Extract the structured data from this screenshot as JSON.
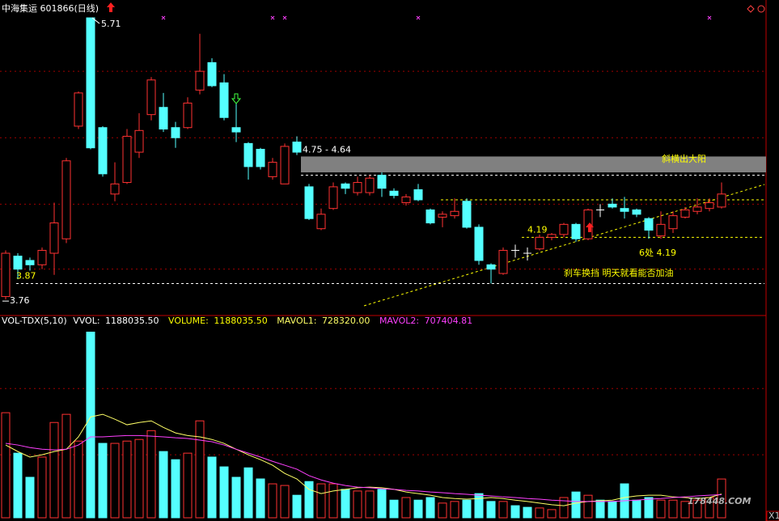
{
  "chart_data": [
    {
      "type": "candlestick",
      "title": "中海集运 601866(日线)",
      "open": [
        3.78,
        4.06,
        4.03,
        4.0,
        4.08,
        4.18,
        4.96,
        5.71,
        4.95,
        4.49,
        4.57,
        4.78,
        5.04,
        5.09,
        4.95,
        4.95,
        5.21,
        5.4,
        5.26,
        4.95,
        4.84,
        4.8,
        4.61,
        4.56,
        4.85,
        4.54,
        4.25,
        4.39,
        4.56,
        4.5,
        4.5,
        4.62,
        4.51,
        4.43,
        4.52,
        4.38,
        4.33,
        4.34,
        4.44,
        4.26,
        4.0,
        3.94,
        4.1,
        4.08,
        4.11,
        4.19,
        4.21,
        4.28,
        4.18,
        4.38,
        4.42,
        4.39,
        4.38,
        4.32,
        4.2,
        4.25,
        4.33,
        4.37,
        4.39,
        4.4
      ],
      "high": [
        4.1,
        4.08,
        4.05,
        4.12,
        4.43,
        4.74,
        5.2,
        5.71,
        4.96,
        4.71,
        4.94,
        5.05,
        5.3,
        5.19,
        4.99,
        5.16,
        5.6,
        5.43,
        5.32,
        5.12,
        4.85,
        4.81,
        4.74,
        4.84,
        4.89,
        4.56,
        4.39,
        4.57,
        4.57,
        4.61,
        4.62,
        4.64,
        4.53,
        4.49,
        4.56,
        4.39,
        4.37,
        4.46,
        4.46,
        4.28,
        4.01,
        4.12,
        4.14,
        4.12,
        4.21,
        4.22,
        4.29,
        4.29,
        4.39,
        4.42,
        4.46,
        4.47,
        4.39,
        4.33,
        4.37,
        4.37,
        4.4,
        4.46,
        4.46,
        4.57
      ],
      "low": [
        3.76,
        3.9,
        3.96,
        3.97,
        3.93,
        4.15,
        4.94,
        4.8,
        4.61,
        4.44,
        4.56,
        4.74,
        5.0,
        4.92,
        4.81,
        4.94,
        5.18,
        5.23,
        5.0,
        4.85,
        4.59,
        4.66,
        4.59,
        4.56,
        4.76,
        4.31,
        4.24,
        4.38,
        4.49,
        4.48,
        4.48,
        4.47,
        4.46,
        4.41,
        4.44,
        4.28,
        4.26,
        4.32,
        4.25,
        4.0,
        3.87,
        3.93,
        4.05,
        4.03,
        4.1,
        4.17,
        4.19,
        4.16,
        4.17,
        4.33,
        4.39,
        4.32,
        4.33,
        4.18,
        4.18,
        4.22,
        4.32,
        4.35,
        4.37,
        4.39
      ],
      "close": [
        4.08,
        3.97,
        4.0,
        4.1,
        4.29,
        4.72,
        5.19,
        4.81,
        4.63,
        4.56,
        4.89,
        4.93,
        5.28,
        4.94,
        4.88,
        5.12,
        5.34,
        5.24,
        5.02,
        4.92,
        4.68,
        4.68,
        4.71,
        4.82,
        4.78,
        4.32,
        4.35,
        4.54,
        4.53,
        4.57,
        4.6,
        4.53,
        4.48,
        4.47,
        4.45,
        4.29,
        4.35,
        4.37,
        4.26,
        4.03,
        3.97,
        4.1,
        4.1,
        4.08,
        4.19,
        4.21,
        4.28,
        4.18,
        4.38,
        4.38,
        4.4,
        4.37,
        4.35,
        4.24,
        4.28,
        4.34,
        4.38,
        4.4,
        4.43,
        4.49
      ],
      "up_color": "#ff3232",
      "down_color": "#54ffff",
      "flat_color": "#ffffff",
      "ylim": [
        3.66,
        5.8
      ],
      "yticks": [
        3.97,
        4.42,
        4.88,
        5.34
      ],
      "grid": true,
      "high_label": 5.71,
      "low_label": 3.76,
      "support_levels": [
        3.87,
        4.19
      ],
      "guide_levels": [
        4.45,
        4.62
      ],
      "zone": {
        "from": 4.64,
        "to": 4.75,
        "label": "4.75 - 4.64",
        "color": "#808080"
      },
      "annotations": [
        "斜横出大阳",
        "6处 4.19",
        "刹车换挡 明天就看能否加油"
      ]
    },
    {
      "type": "bar",
      "title": "VOL-TDX(5,10)",
      "readouts": [
        {
          "name": "VVOL:",
          "value": 1188035.5,
          "label": "1188035.50",
          "color": "#ffffff"
        },
        {
          "name": "VOLUME:",
          "value": 1188035.5,
          "label": "1188035.50",
          "color": "#ffff00"
        }
      ],
      "values": [
        3220000,
        1980000,
        1240000,
        1860000,
        2920000,
        3170000,
        2350000,
        5690000,
        2280000,
        2280000,
        2350000,
        2400000,
        2670000,
        2030000,
        1780000,
        1980000,
        2970000,
        1860000,
        1560000,
        1240000,
        1530000,
        1190000,
        1040000,
        990000,
        690000,
        1110000,
        1040000,
        1040000,
        870000,
        820000,
        820000,
        870000,
        540000,
        620000,
        540000,
        620000,
        450000,
        500000,
        540000,
        740000,
        500000,
        500000,
        370000,
        320000,
        300000,
        250000,
        620000,
        790000,
        690000,
        540000,
        500000,
        1040000,
        540000,
        620000,
        540000,
        540000,
        500000,
        540000,
        620000,
        1188035.5
      ],
      "lines": [
        {
          "name": "MAVOL1:",
          "color": "#ffff66",
          "current": 728320,
          "current_label": "728320.00",
          "values": [
            2230000,
            2030000,
            1860000,
            1930000,
            2030000,
            2100000,
            2480000,
            3090000,
            3170000,
            3020000,
            2850000,
            2920000,
            2970000,
            2770000,
            2600000,
            2520000,
            2480000,
            2400000,
            2280000,
            2100000,
            1930000,
            1780000,
            1610000,
            1360000,
            1190000,
            870000,
            740000,
            820000,
            870000,
            920000,
            940000,
            920000,
            870000,
            790000,
            740000,
            690000,
            620000,
            590000,
            570000,
            590000,
            620000,
            590000,
            540000,
            500000,
            450000,
            400000,
            370000,
            450000,
            500000,
            520000,
            540000,
            620000,
            670000,
            690000,
            690000,
            640000,
            620000,
            590000,
            620000,
            728320
          ]
        },
        {
          "name": "MAVOL2:",
          "color": "#ff40ff",
          "current": 707404.81,
          "current_label": "707404.81",
          "values": [
            2280000,
            2230000,
            2150000,
            2100000,
            2080000,
            2100000,
            2230000,
            2480000,
            2480000,
            2500000,
            2520000,
            2520000,
            2500000,
            2480000,
            2450000,
            2430000,
            2380000,
            2330000,
            2230000,
            2100000,
            1980000,
            1860000,
            1730000,
            1610000,
            1490000,
            1290000,
            1160000,
            1060000,
            990000,
            940000,
            920000,
            890000,
            870000,
            840000,
            820000,
            790000,
            770000,
            740000,
            720000,
            690000,
            670000,
            640000,
            620000,
            590000,
            570000,
            540000,
            520000,
            500000,
            500000,
            500000,
            500000,
            520000,
            540000,
            570000,
            590000,
            620000,
            640000,
            670000,
            690000,
            707404.81
          ]
        }
      ],
      "ylim": [
        0,
        6000000
      ],
      "yticks": [
        1930000,
        3960000
      ],
      "grid": true
    }
  ],
  "watermark": "178448.COM",
  "corner_label": "X1"
}
